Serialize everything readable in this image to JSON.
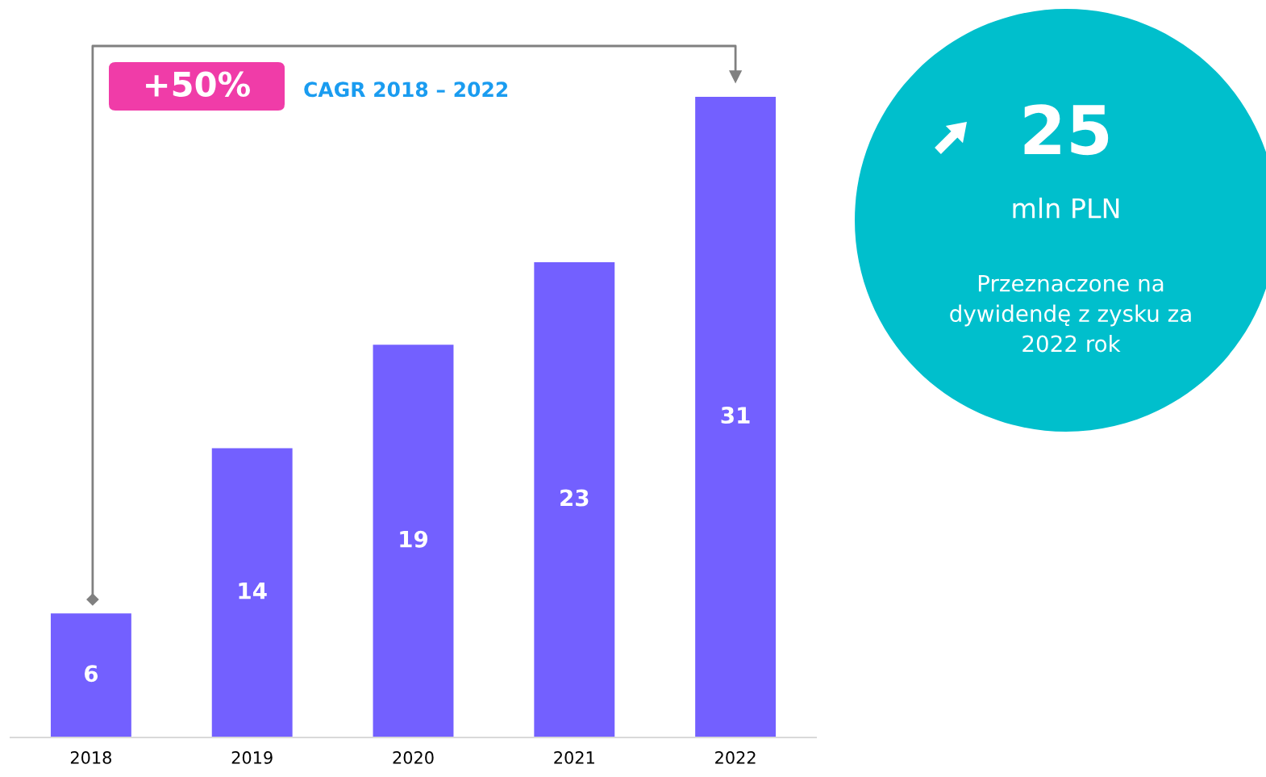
{
  "chart_data": {
    "type": "bar",
    "categories": [
      "2018",
      "2019",
      "2020",
      "2021",
      "2022"
    ],
    "values": [
      6,
      14,
      19,
      23,
      31
    ],
    "color": "#7360ff",
    "data_labels": true,
    "annotations": [
      "+50%",
      "CAGR 2018 – 2022",
      "25",
      "mln PLN",
      "Przeznaczone na\ndywidendę z zysku za\n2022 rok"
    ]
  }
}
